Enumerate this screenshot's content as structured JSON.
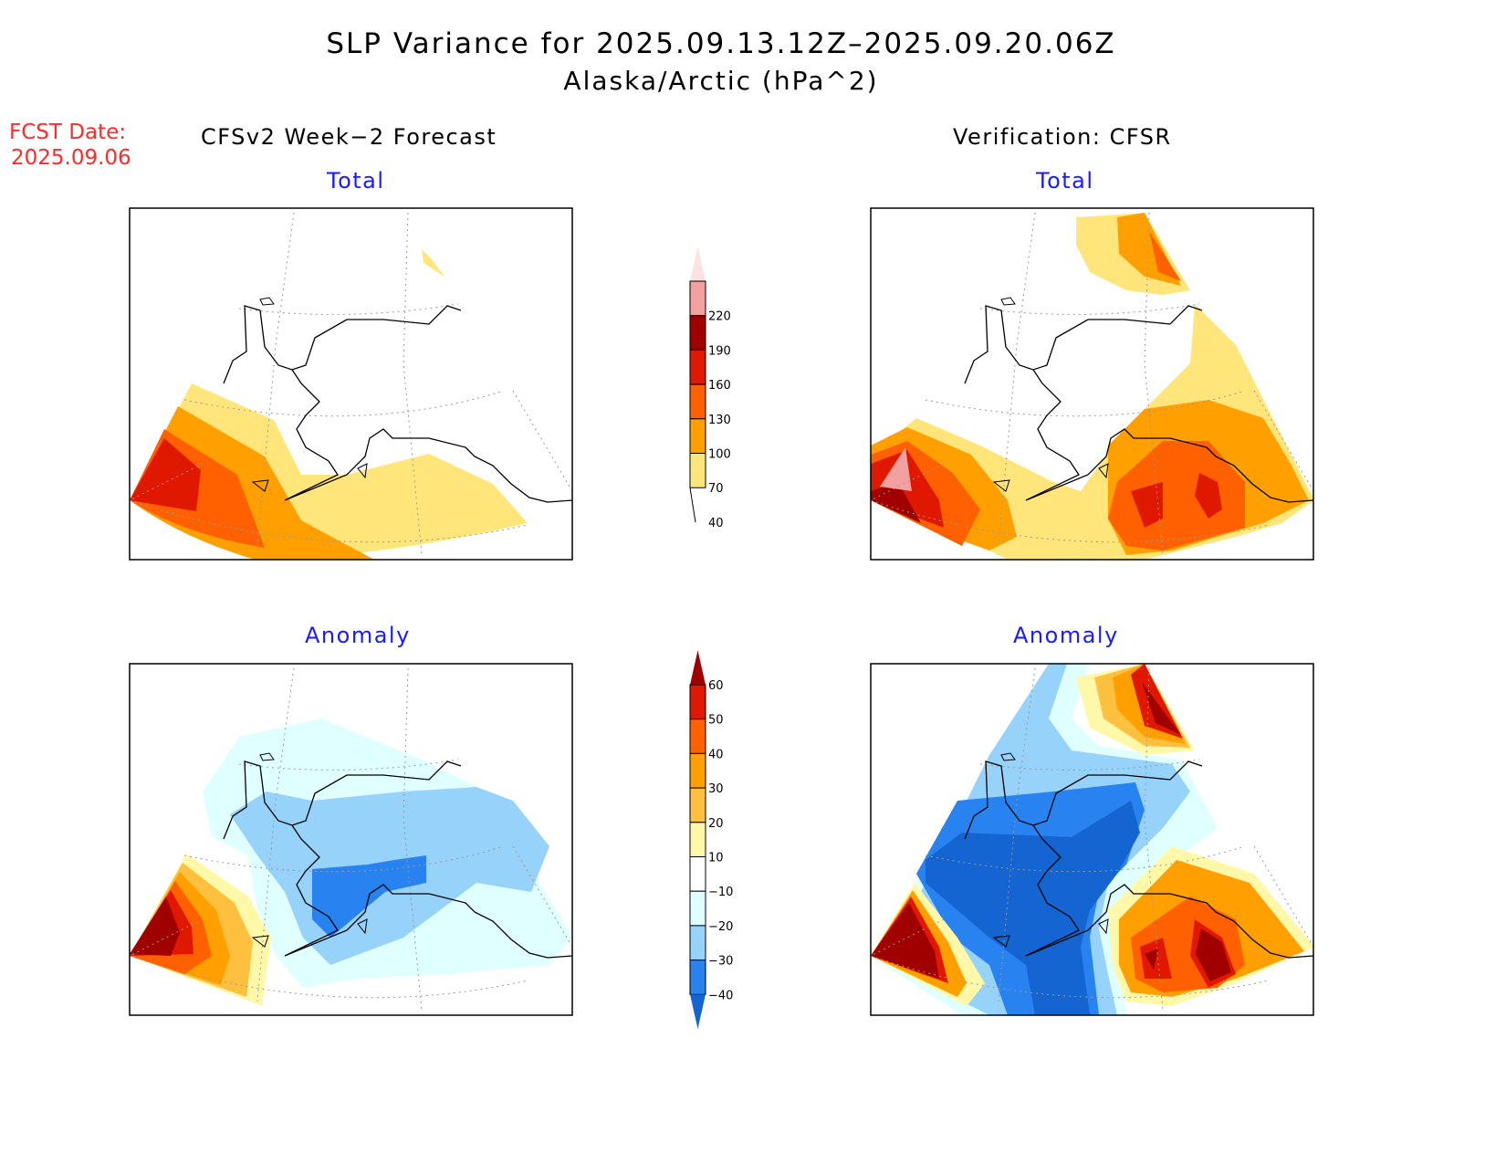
{
  "header": {
    "title": "SLP Variance for 2025.09.13.12Z–2025.09.20.06Z",
    "subtitle": "Alaska/Arctic (hPa^2)",
    "fcst_label": "FCST Date:",
    "fcst_date": "2025.09.06"
  },
  "columns": {
    "left": "CFSv2 Week−2 Forecast",
    "right": "Verification: CFSR"
  },
  "panels": {
    "forecast_total": "Total",
    "verif_total": "Total",
    "forecast_anomaly": "Anomaly",
    "verif_anomaly": "Anomaly"
  },
  "colorbar_total": {
    "labels": [
      "220",
      "190",
      "160",
      "130",
      "100",
      "70",
      "40"
    ],
    "colors": [
      "#fde2e2",
      "#f2a0a0",
      "#a00000",
      "#e01800",
      "#ff6000",
      "#ffa000",
      "#ffe57a"
    ]
  },
  "colorbar_anomaly": {
    "labels": [
      "60",
      "50",
      "40",
      "30",
      "20",
      "10",
      "−10",
      "−20",
      "−30",
      "−40"
    ],
    "colors": [
      "#a00000",
      "#e01800",
      "#ff6000",
      "#ffa000",
      "#ffc040",
      "#fff8a8",
      "#ffffff",
      "#e0ffff",
      "#96d2fa",
      "#2882f0",
      "#1464d2"
    ]
  }
}
